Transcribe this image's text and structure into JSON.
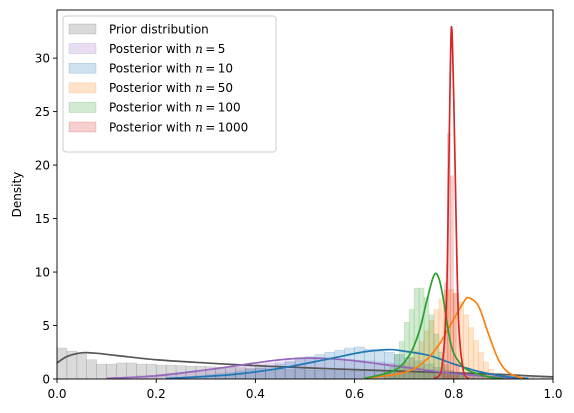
{
  "chart_data": {
    "type": "area",
    "title": "",
    "xlabel": "",
    "ylabel": "Density",
    "xlim": [
      0,
      1
    ],
    "ylim": [
      0,
      34.5
    ],
    "xticks": [
      {
        "value": 0.0,
        "label": "0.0"
      },
      {
        "value": 0.2,
        "label": "0.2"
      },
      {
        "value": 0.4,
        "label": "0.4"
      },
      {
        "value": 0.6,
        "label": "0.6"
      },
      {
        "value": 0.8,
        "label": "0.8"
      },
      {
        "value": 1.0,
        "label": "1.0"
      }
    ],
    "yticks": [
      {
        "value": 0,
        "label": "0"
      },
      {
        "value": 5,
        "label": "5"
      },
      {
        "value": 10,
        "label": "10"
      },
      {
        "value": 15,
        "label": "15"
      },
      {
        "value": 20,
        "label": "20"
      },
      {
        "value": 25,
        "label": "25"
      },
      {
        "value": 30,
        "label": "30"
      }
    ],
    "grid": false,
    "legend_position": "top-left",
    "series": [
      {
        "name": "Prior distribution",
        "color": "#555555",
        "kde": [
          [
            0.0,
            1.5
          ],
          [
            0.02,
            2.1
          ],
          [
            0.05,
            2.45
          ],
          [
            0.08,
            2.4
          ],
          [
            0.12,
            2.2
          ],
          [
            0.2,
            1.8
          ],
          [
            0.3,
            1.5
          ],
          [
            0.4,
            1.25
          ],
          [
            0.5,
            1.05
          ],
          [
            0.6,
            0.88
          ],
          [
            0.7,
            0.72
          ],
          [
            0.8,
            0.58
          ],
          [
            0.9,
            0.42
          ],
          [
            0.95,
            0.3
          ],
          [
            1.0,
            0.2
          ]
        ],
        "bins": {
          "start": 0.0,
          "width": 0.02,
          "heights": [
            2.9,
            2.6,
            2.3,
            1.8,
            1.4,
            1.4,
            1.5,
            1.5,
            1.4,
            1.4,
            1.3,
            1.3,
            1.25,
            1.2,
            1.2,
            1.15,
            1.1,
            1.1,
            1.05,
            1.0,
            1.0,
            0.95,
            0.95,
            0.9,
            0.9,
            0.85,
            0.85,
            0.8,
            0.8,
            0.75,
            0.75,
            0.7,
            0.7,
            0.65,
            0.65,
            0.6,
            0.6,
            0.55,
            0.55,
            0.5,
            0.5,
            0.5,
            0.45,
            0.45,
            0.4,
            0.4,
            0.35,
            0.35,
            0.3,
            0.25
          ]
        }
      },
      {
        "name": "Posterior with $n=5$",
        "color": "#9467bd",
        "kde": [
          [
            0.1,
            0.05
          ],
          [
            0.2,
            0.3
          ],
          [
            0.3,
            0.85
          ],
          [
            0.4,
            1.5
          ],
          [
            0.45,
            1.8
          ],
          [
            0.5,
            1.95
          ],
          [
            0.55,
            1.9
          ],
          [
            0.6,
            1.7
          ],
          [
            0.7,
            1.1
          ],
          [
            0.8,
            0.5
          ],
          [
            0.9,
            0.15
          ],
          [
            0.95,
            0.05
          ]
        ],
        "bins": {
          "start": 0.1,
          "width": 0.02,
          "heights": [
            0.1,
            0.15,
            0.2,
            0.3,
            0.35,
            0.45,
            0.55,
            0.6,
            0.7,
            0.8,
            0.9,
            1.0,
            1.1,
            1.2,
            1.3,
            1.4,
            1.5,
            1.6,
            1.7,
            1.9,
            2.0,
            2.0,
            1.95,
            1.9,
            1.85,
            1.75,
            1.7,
            1.6,
            1.5,
            1.35,
            1.2,
            1.05,
            0.9,
            0.75,
            0.6,
            0.5,
            0.4,
            0.3,
            0.2,
            0.15,
            0.1,
            0.05
          ]
        }
      },
      {
        "name": "Posterior with $n=10$",
        "color": "#1f77b4",
        "kde": [
          [
            0.22,
            0.05
          ],
          [
            0.35,
            0.4
          ],
          [
            0.45,
            1.0
          ],
          [
            0.55,
            1.9
          ],
          [
            0.62,
            2.55
          ],
          [
            0.67,
            2.75
          ],
          [
            0.7,
            2.6
          ],
          [
            0.75,
            2.2
          ],
          [
            0.8,
            1.4
          ],
          [
            0.85,
            0.7
          ],
          [
            0.9,
            0.25
          ],
          [
            0.95,
            0.05
          ]
        ],
        "bins": {
          "start": 0.22,
          "width": 0.02,
          "heights": [
            0.1,
            0.15,
            0.2,
            0.3,
            0.4,
            0.5,
            0.6,
            0.75,
            0.9,
            1.05,
            1.2,
            1.4,
            1.6,
            1.85,
            2.1,
            2.3,
            2.5,
            2.7,
            2.9,
            3.0,
            2.8,
            2.6,
            2.5,
            2.3,
            2.0,
            1.7,
            1.4,
            1.1,
            0.8,
            0.5,
            0.35,
            0.2,
            0.1,
            0.05
          ]
        }
      },
      {
        "name": "Posterior with $n=50$",
        "color": "#ff7f0e",
        "kde": [
          [
            0.62,
            0.05
          ],
          [
            0.7,
            0.6
          ],
          [
            0.74,
            1.6
          ],
          [
            0.77,
            3.2
          ],
          [
            0.8,
            5.6
          ],
          [
            0.82,
            7.2
          ],
          [
            0.83,
            7.6
          ],
          [
            0.85,
            6.8
          ],
          [
            0.87,
            4.2
          ],
          [
            0.89,
            1.8
          ],
          [
            0.91,
            0.6
          ],
          [
            0.94,
            0.05
          ]
        ],
        "bins": {
          "start": 0.66,
          "width": 0.01,
          "heights": [
            0.3,
            0.5,
            0.8,
            1.2,
            1.6,
            2.0,
            2.6,
            3.5,
            4.5,
            5.5,
            6.5,
            7.5,
            8.3,
            8.4,
            8.0,
            7.2,
            6.0,
            4.8,
            3.6,
            2.5,
            1.6,
            0.9,
            0.5,
            0.2,
            0.1
          ]
        }
      },
      {
        "name": "Posterior with $n=100$",
        "color": "#2ca02c",
        "kde": [
          [
            0.62,
            0.05
          ],
          [
            0.68,
            0.8
          ],
          [
            0.71,
            2.2
          ],
          [
            0.73,
            4.4
          ],
          [
            0.745,
            7.2
          ],
          [
            0.76,
            9.7
          ],
          [
            0.77,
            9.4
          ],
          [
            0.78,
            7.2
          ],
          [
            0.79,
            4.2
          ],
          [
            0.8,
            2.4
          ],
          [
            0.82,
            1.1
          ],
          [
            0.84,
            0.6
          ],
          [
            0.87,
            0.2
          ],
          [
            0.9,
            0.05
          ]
        ],
        "bins": {
          "start": 0.66,
          "width": 0.01,
          "heights": [
            0.5,
            1.1,
            2.3,
            3.5,
            5.3,
            6.5,
            8.5,
            8.5,
            7.6,
            6.0,
            4.2,
            2.5,
            1.3,
            0.7,
            0.4,
            0.3
          ]
        }
      },
      {
        "name": "Posterior with $n=1000$",
        "color": "#d62728",
        "kde": [
          [
            0.76,
            0.05
          ],
          [
            0.775,
            0.8
          ],
          [
            0.785,
            7.0
          ],
          [
            0.79,
            20.0
          ],
          [
            0.795,
            32.8
          ],
          [
            0.8,
            26.0
          ],
          [
            0.805,
            14.0
          ],
          [
            0.81,
            5.0
          ],
          [
            0.82,
            0.6
          ],
          [
            0.83,
            0.05
          ]
        ],
        "bins": {
          "start": 0.775,
          "width": 0.006,
          "heights": [
            1.5,
            9.0,
            23.0,
            19.0,
            8.0,
            1.5
          ]
        }
      }
    ]
  }
}
